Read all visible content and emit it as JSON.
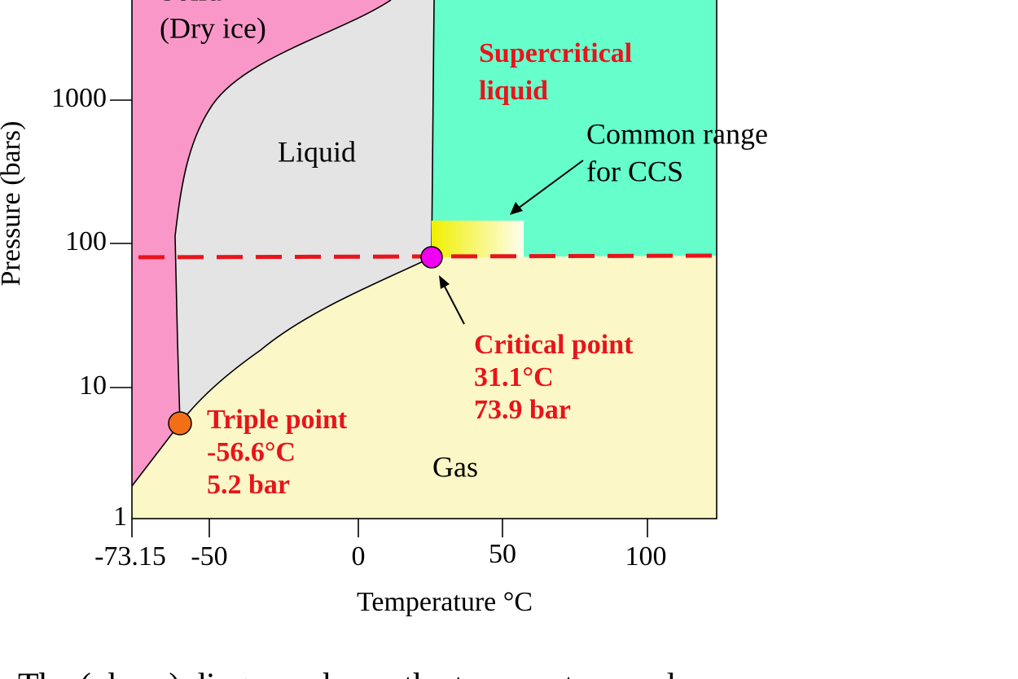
{
  "axes": {
    "y_label": "Pressure (bars)",
    "y_ticks": [
      "1000",
      "100",
      "10",
      "1"
    ],
    "x_label": "Temperature °C",
    "x_ticks": [
      "-73.15",
      "-50",
      "0",
      "50",
      "100"
    ]
  },
  "regions": {
    "solid": "Solid",
    "solid_note": "(Dry ice)",
    "liquid": "Liquid",
    "supercritical": [
      "Supercritical",
      "liquid"
    ],
    "gas": "Gas"
  },
  "annotations": {
    "ccs": [
      "Common range",
      "for CCS"
    ],
    "critical_point": [
      "Critical point",
      "31.1°C",
      "73.9 bar"
    ],
    "triple_point": [
      "Triple point",
      "-56.6°C",
      "5.2 bar"
    ]
  },
  "caption": "The (phase) diagram shows the temperature and pressure"
}
